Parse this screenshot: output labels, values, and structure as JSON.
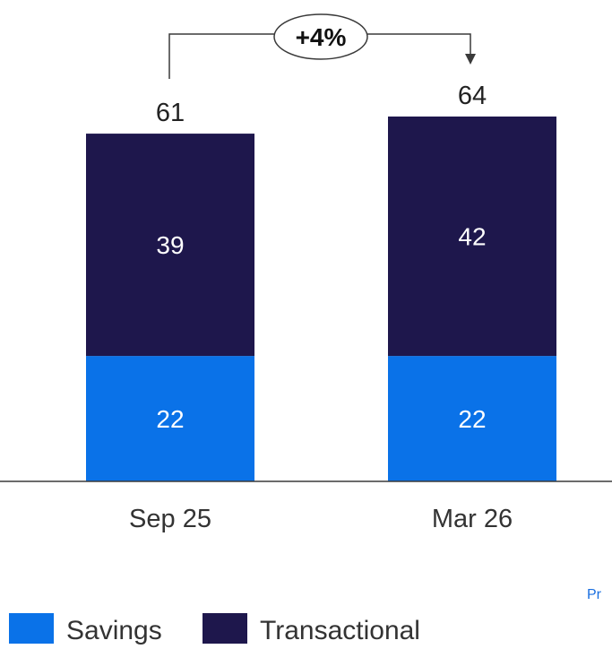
{
  "chart_data": {
    "type": "bar",
    "stacked": true,
    "categories": [
      "Sep 25",
      "Mar 26"
    ],
    "series": [
      {
        "name": "Savings",
        "values": [
          22,
          22
        ],
        "color": "#0a72e8"
      },
      {
        "name": "Transactional",
        "values": [
          39,
          42
        ],
        "color": "#1e174c"
      }
    ],
    "totals": [
      "61",
      "64"
    ],
    "change_annotation": "+4%",
    "ylim": [
      0,
      64
    ],
    "grid": false,
    "legend_position": "bottom-left",
    "footnote": "Pr"
  }
}
